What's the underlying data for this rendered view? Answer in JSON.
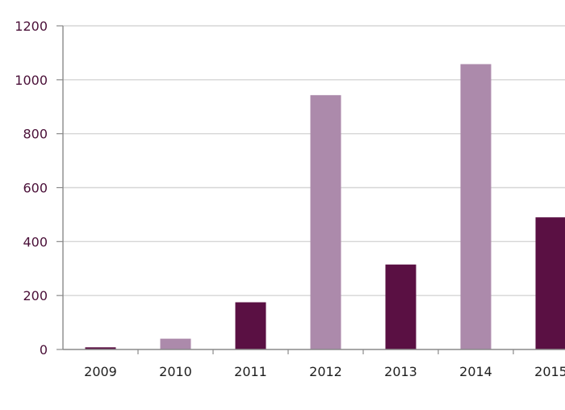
{
  "chart_data": {
    "type": "bar",
    "categories": [
      "2009",
      "2010",
      "2011",
      "2012",
      "2013",
      "2014",
      "2015"
    ],
    "values": [
      8,
      40,
      175,
      943,
      315,
      1058,
      490
    ],
    "bar_colors": [
      "#5a1043",
      "#ac8aab",
      "#5a1043",
      "#ac8aab",
      "#5a1043",
      "#ac8aab",
      "#5a1043"
    ],
    "ylim": [
      0,
      1200
    ],
    "yticks": [
      0,
      200,
      400,
      600,
      800,
      1000,
      1200
    ],
    "grid": true,
    "colors": {
      "axis": "#8a8a8a",
      "grid": "#d6d6d6",
      "dark_bar": "#5a1043",
      "light_bar": "#ac8aab"
    }
  }
}
